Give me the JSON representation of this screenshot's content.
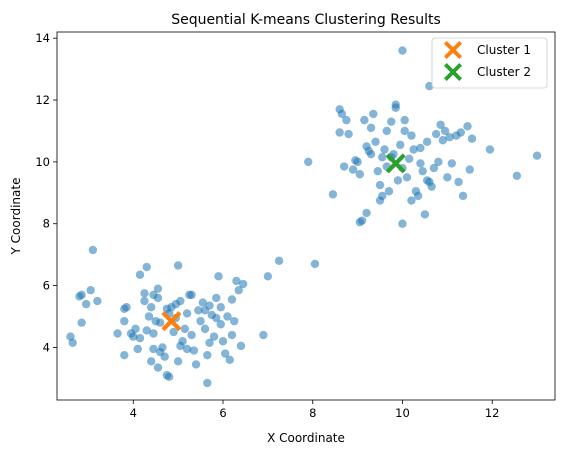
{
  "chart_data": {
    "type": "scatter",
    "title": "Sequential K-means Clustering Results",
    "xlabel": "X Coordinate",
    "ylabel": "Y Coordinate",
    "xlim": [
      2.3,
      13.4
    ],
    "ylim": [
      2.3,
      14.2
    ],
    "xticks": [
      4,
      6,
      8,
      10,
      12
    ],
    "yticks": [
      4,
      6,
      8,
      10,
      12,
      14
    ],
    "xtick_labels": [
      "4",
      "6",
      "8",
      "10",
      "12"
    ],
    "ytick_labels": [
      "4",
      "6",
      "8",
      "10",
      "12",
      "14"
    ],
    "grid": false,
    "legend_position": "top-right",
    "point_color": "#1f77b4",
    "points": [
      [
        3.1,
        7.15
      ],
      [
        2.6,
        4.35
      ],
      [
        2.65,
        4.15
      ],
      [
        2.8,
        5.65
      ],
      [
        2.85,
        5.7
      ],
      [
        2.95,
        5.4
      ],
      [
        3.05,
        5.85
      ],
      [
        2.85,
        4.8
      ],
      [
        3.2,
        5.5
      ],
      [
        3.65,
        4.45
      ],
      [
        3.8,
        5.25
      ],
      [
        3.85,
        5.3
      ],
      [
        3.8,
        4.85
      ],
      [
        3.8,
        3.75
      ],
      [
        4.0,
        4.35
      ],
      [
        4.05,
        4.6
      ],
      [
        4.15,
        6.35
      ],
      [
        4.25,
        5.5
      ],
      [
        4.3,
        6.6
      ],
      [
        4.35,
        5.0
      ],
      [
        4.4,
        5.3
      ],
      [
        4.45,
        4.45
      ],
      [
        4.4,
        3.55
      ],
      [
        4.45,
        3.95
      ],
      [
        4.55,
        3.35
      ],
      [
        4.45,
        5.7
      ],
      [
        4.55,
        5.6
      ],
      [
        4.6,
        4.8
      ],
      [
        4.65,
        4.0
      ],
      [
        4.7,
        3.7
      ],
      [
        4.75,
        5.25
      ],
      [
        4.8,
        5.1
      ],
      [
        4.85,
        5.3
      ],
      [
        4.9,
        4.5
      ],
      [
        4.95,
        5.4
      ],
      [
        4.75,
        3.1
      ],
      [
        4.8,
        3.05
      ],
      [
        5.0,
        6.65
      ],
      [
        5.05,
        4.05
      ],
      [
        5.1,
        4.2
      ],
      [
        5.15,
        4.6
      ],
      [
        5.2,
        5.1
      ],
      [
        5.25,
        5.7
      ],
      [
        5.3,
        4.4
      ],
      [
        5.35,
        3.9
      ],
      [
        5.4,
        3.45
      ],
      [
        5.45,
        5.2
      ],
      [
        5.5,
        4.85
      ],
      [
        5.55,
        5.45
      ],
      [
        5.6,
        4.6
      ],
      [
        5.65,
        2.85
      ],
      [
        5.65,
        3.75
      ],
      [
        5.7,
        4.15
      ],
      [
        5.75,
        5.05
      ],
      [
        5.8,
        4.35
      ],
      [
        5.85,
        5.6
      ],
      [
        5.9,
        6.3
      ],
      [
        5.95,
        4.75
      ],
      [
        6.0,
        4.2
      ],
      [
        6.05,
        3.8
      ],
      [
        6.1,
        5.0
      ],
      [
        6.15,
        3.6
      ],
      [
        6.2,
        5.55
      ],
      [
        6.25,
        4.85
      ],
      [
        6.3,
        6.15
      ],
      [
        6.35,
        5.85
      ],
      [
        6.4,
        4.05
      ],
      [
        6.45,
        6.05
      ],
      [
        6.9,
        4.4
      ],
      [
        7.0,
        6.3
      ],
      [
        7.25,
        6.8
      ],
      [
        8.05,
        6.7
      ],
      [
        4.1,
        3.95
      ],
      [
        4.6,
        3.85
      ],
      [
        5.3,
        5.7
      ],
      [
        5.05,
        5.5
      ],
      [
        4.3,
        4.55
      ],
      [
        5.95,
        5.3
      ],
      [
        5.7,
        5.35
      ],
      [
        4.95,
        4.95
      ],
      [
        4.25,
        5.75
      ],
      [
        3.95,
        4.45
      ],
      [
        5.2,
        3.95
      ],
      [
        5.6,
        5.2
      ],
      [
        5.85,
        4.95
      ],
      [
        4.5,
        4.85
      ],
      [
        5.0,
        3.55
      ],
      [
        4.15,
        4.3
      ],
      [
        4.55,
        5.9
      ],
      [
        6.2,
        4.4
      ],
      [
        7.9,
        10.0
      ],
      [
        8.45,
        8.95
      ],
      [
        8.6,
        11.7
      ],
      [
        8.65,
        11.55
      ],
      [
        8.6,
        10.95
      ],
      [
        8.75,
        11.35
      ],
      [
        8.8,
        10.9
      ],
      [
        8.7,
        9.85
      ],
      [
        8.9,
        9.75
      ],
      [
        8.95,
        10.05
      ],
      [
        9.0,
        10.0
      ],
      [
        9.05,
        9.6
      ],
      [
        9.05,
        8.05
      ],
      [
        9.1,
        8.1
      ],
      [
        9.15,
        11.35
      ],
      [
        9.2,
        10.5
      ],
      [
        9.2,
        8.35
      ],
      [
        9.25,
        10.35
      ],
      [
        9.3,
        11.1
      ],
      [
        9.35,
        11.55
      ],
      [
        9.4,
        10.65
      ],
      [
        9.45,
        9.7
      ],
      [
        9.5,
        8.75
      ],
      [
        9.55,
        10.15
      ],
      [
        9.55,
        8.9
      ],
      [
        9.6,
        10.4
      ],
      [
        9.65,
        11.0
      ],
      [
        9.65,
        9.85
      ],
      [
        9.7,
        9.05
      ],
      [
        9.75,
        11.3
      ],
      [
        9.8,
        10.25
      ],
      [
        9.85,
        11.85
      ],
      [
        9.85,
        11.75
      ],
      [
        9.9,
        9.4
      ],
      [
        9.95,
        10.55
      ],
      [
        10.0,
        8.0
      ],
      [
        10.0,
        13.6
      ],
      [
        10.05,
        11.0
      ],
      [
        10.05,
        11.35
      ],
      [
        10.1,
        9.5
      ],
      [
        10.15,
        10.1
      ],
      [
        10.2,
        8.75
      ],
      [
        10.25,
        10.4
      ],
      [
        10.3,
        9.05
      ],
      [
        10.35,
        8.9
      ],
      [
        10.4,
        10.45
      ],
      [
        10.45,
        9.7
      ],
      [
        10.5,
        8.3
      ],
      [
        10.55,
        10.65
      ],
      [
        10.6,
        9.35
      ],
      [
        10.6,
        12.45
      ],
      [
        10.65,
        9.2
      ],
      [
        10.7,
        9.8
      ],
      [
        10.75,
        10.9
      ],
      [
        10.8,
        10.0
      ],
      [
        10.85,
        11.2
      ],
      [
        10.9,
        10.7
      ],
      [
        10.95,
        11.0
      ],
      [
        11.0,
        9.5
      ],
      [
        11.05,
        10.8
      ],
      [
        11.1,
        9.95
      ],
      [
        11.2,
        10.85
      ],
      [
        11.25,
        9.35
      ],
      [
        11.3,
        10.95
      ],
      [
        11.35,
        8.9
      ],
      [
        11.45,
        11.15
      ],
      [
        11.55,
        10.75
      ],
      [
        11.95,
        10.4
      ],
      [
        11.5,
        9.75
      ],
      [
        12.55,
        9.55
      ],
      [
        13.0,
        10.2
      ],
      [
        9.75,
        10.15
      ],
      [
        9.3,
        10.25
      ],
      [
        10.2,
        10.85
      ],
      [
        10.0,
        9.8
      ],
      [
        9.5,
        9.25
      ],
      [
        10.4,
        9.95
      ],
      [
        10.55,
        9.4
      ]
    ],
    "series": [
      {
        "name": "Cluster 1",
        "color": "#ff7f0e",
        "marker": "X",
        "x": 4.85,
        "y": 4.85
      },
      {
        "name": "Cluster 2",
        "color": "#2ca02c",
        "marker": "X",
        "x": 9.85,
        "y": 9.95
      }
    ]
  }
}
